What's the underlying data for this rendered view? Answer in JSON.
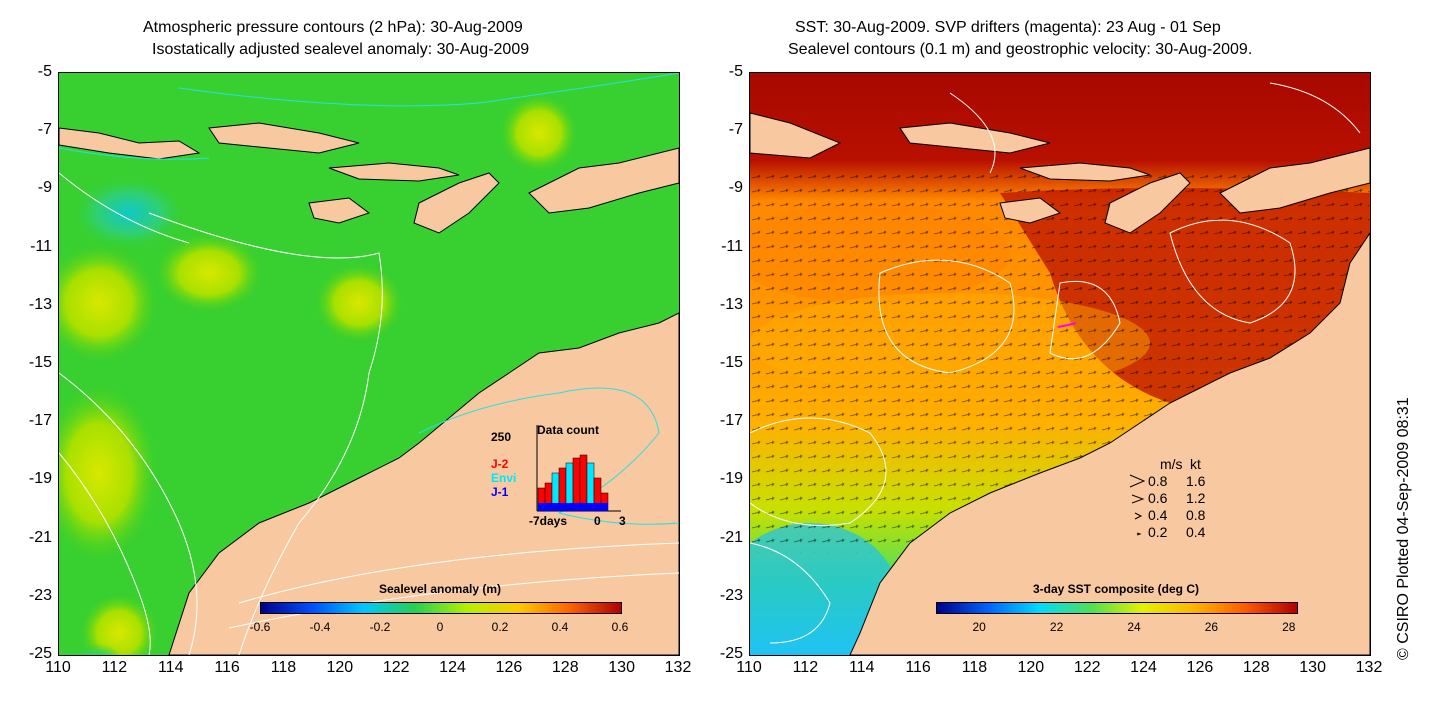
{
  "left_panel": {
    "title_line1": "Atmospheric pressure contours (2 hPa): 30-Aug-2009",
    "title_line2": "Isostatically adjusted sealevel anomaly: 30-Aug-2009",
    "colorbar_title": "Sealevel anomaly (m)",
    "colorbar_ticks": [
      "-0.6",
      "-0.4",
      "-0.2",
      "0",
      "0.2",
      "0.4",
      "0.6"
    ],
    "colorbar_colors": [
      "#00008c",
      "#0050ff",
      "#00c8ff",
      "#28d050",
      "#b4f000",
      "#ffc800",
      "#ff6400",
      "#b40000"
    ],
    "inset": {
      "title": "Data count",
      "y_max": "250",
      "x_left": "-7days",
      "x_mid": "0",
      "x_right": "3",
      "legend": [
        {
          "label": "J-2",
          "color": "#ff0000"
        },
        {
          "label": "Envi",
          "color": "#00e8ff"
        },
        {
          "label": "J-1",
          "color": "#0000ff"
        }
      ]
    }
  },
  "right_panel": {
    "title_line1": "SST: 30-Aug-2009. SVP drifters (magenta): 23 Aug - 01 Sep",
    "title_line2": "Sealevel contours (0.1 m) and geostrophic velocity: 30-Aug-2009.",
    "colorbar_title": "3-day SST composite (deg C)",
    "colorbar_ticks": [
      "20",
      "22",
      "24",
      "26",
      "28"
    ],
    "colorbar_colors": [
      "#00008c",
      "#0064ff",
      "#00dcff",
      "#50e050",
      "#e6f000",
      "#ffb400",
      "#ff5a00",
      "#b40000"
    ],
    "velocity_legend": {
      "header_ms": "m/s",
      "header_kt": "kt",
      "rows": [
        {
          "ms": "0.8",
          "kt": "1.6"
        },
        {
          "ms": "0.6",
          "kt": "1.2"
        },
        {
          "ms": "0.4",
          "kt": "0.8"
        },
        {
          "ms": "0.2",
          "kt": "0.4"
        }
      ]
    }
  },
  "axes": {
    "y_ticks": [
      "-5",
      "-7",
      "-9",
      "-11",
      "-13",
      "-15",
      "-17",
      "-19",
      "-21",
      "-23",
      "-25"
    ],
    "x_ticks": [
      "110",
      "112",
      "114",
      "116",
      "118",
      "120",
      "122",
      "124",
      "126",
      "128",
      "130",
      "132"
    ]
  },
  "credit": "© CSIRO Plotted 04-Sep-2009 08:31",
  "colors": {
    "land": "#f8c8a0",
    "sea_green": "#2ed02e",
    "sst_warm": "#b00c00",
    "contour_white": "#ffffff",
    "contour_cyan": "#28e0e0",
    "drifter_magenta": "#ff00ff"
  }
}
